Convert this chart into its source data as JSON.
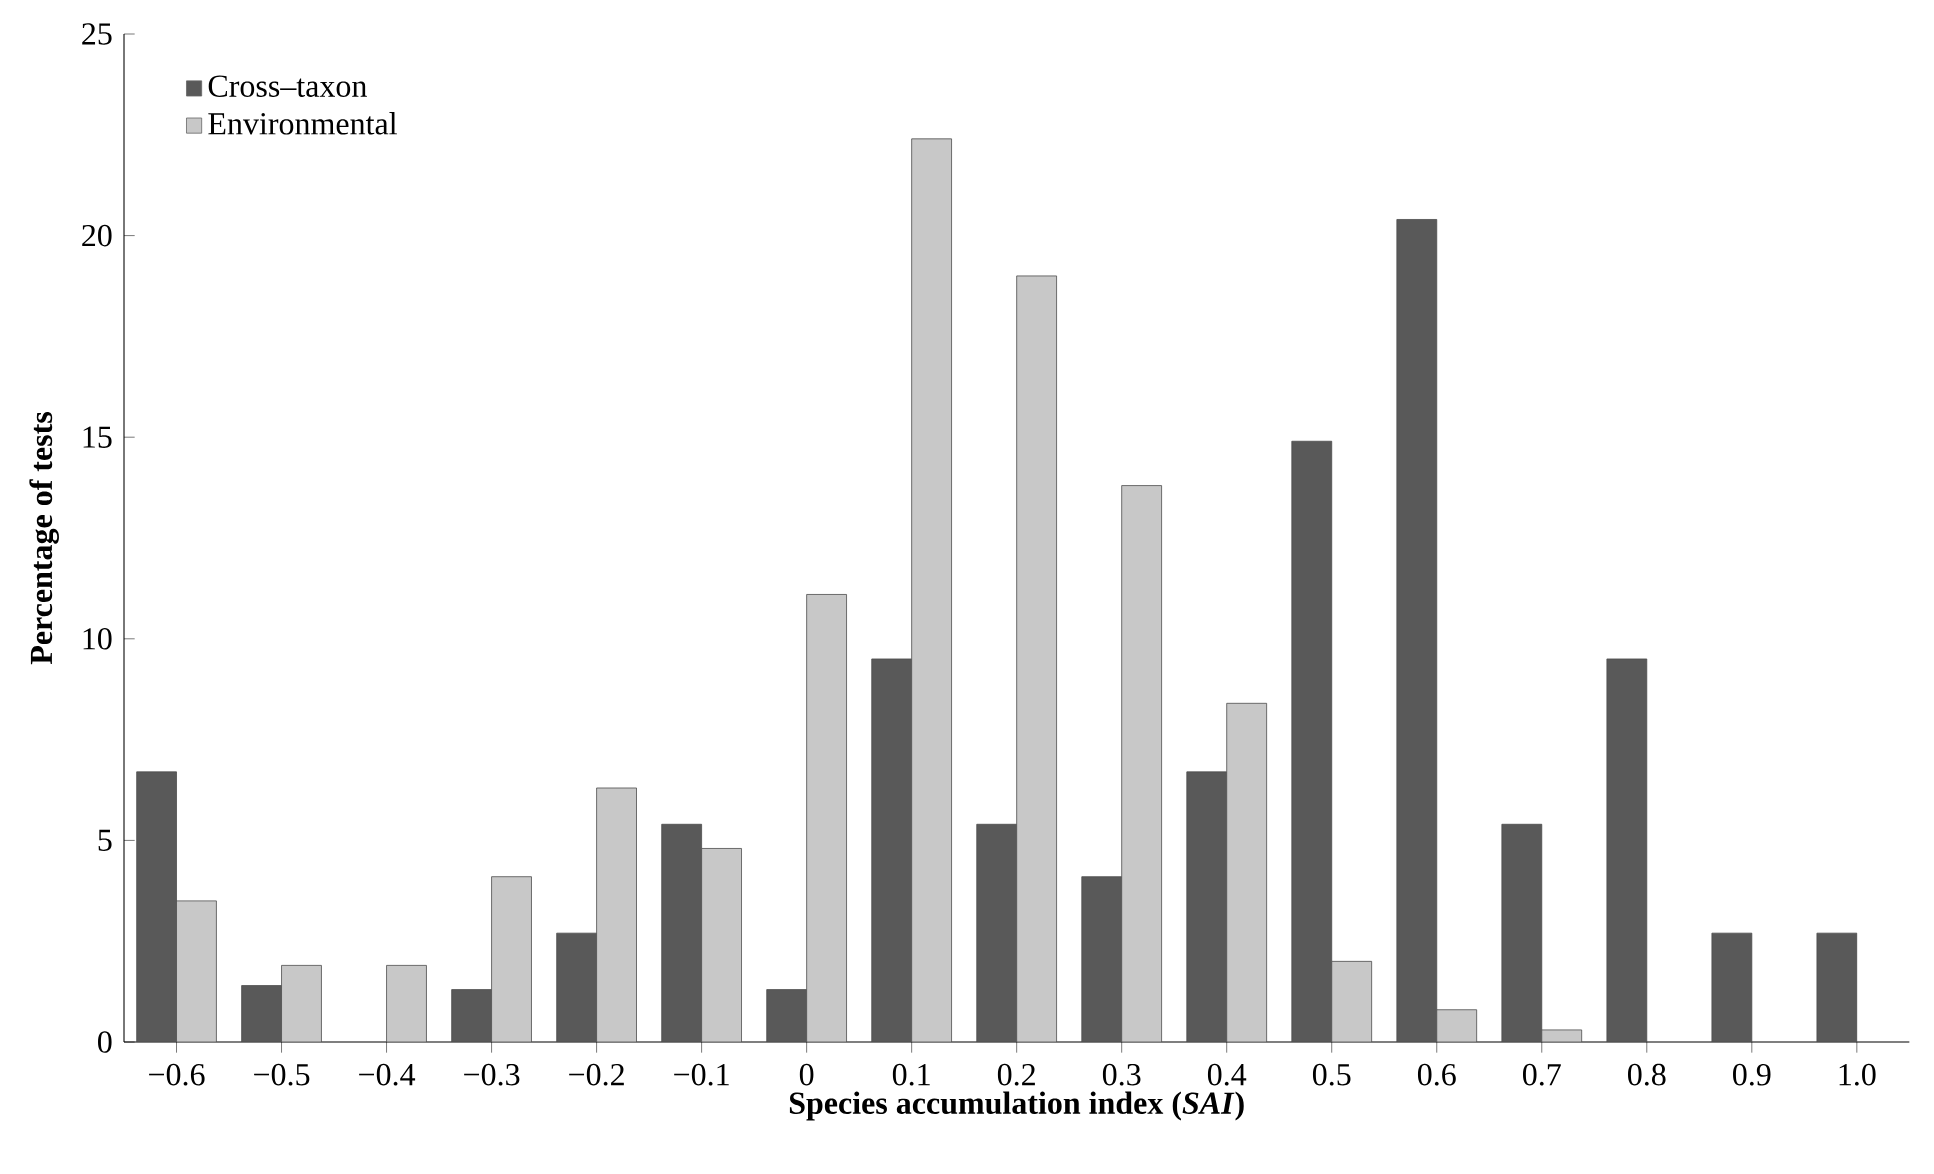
{
  "chart_data": {
    "type": "bar",
    "xlabel": "Species accumulation index (*SAI*)",
    "ylabel": "Percentage of tests",
    "categories": [
      "−0.6",
      "−0.5",
      "−0.4",
      "−0.3",
      "−0.2",
      "−0.1",
      "0",
      "0.1",
      "0.2",
      "0.3",
      "0.4",
      "0.5",
      "0.6",
      "0.7",
      "0.8",
      "0.9",
      "1.0"
    ],
    "series": [
      {
        "name": "Cross–taxon",
        "color": "#595959",
        "values": [
          6.7,
          1.4,
          null,
          1.3,
          2.7,
          5.4,
          1.3,
          9.5,
          5.4,
          4.1,
          6.7,
          14.9,
          20.4,
          5.4,
          9.5,
          2.7,
          2.7
        ]
      },
      {
        "name": "Environmental",
        "color": "#c8c8c8",
        "values": [
          3.5,
          1.9,
          1.9,
          4.1,
          6.3,
          4.8,
          11.1,
          22.4,
          19.0,
          13.8,
          8.4,
          2.0,
          0.8,
          0.3,
          null,
          null,
          null
        ]
      }
    ],
    "ylim": [
      0,
      25
    ],
    "yticks": [
      0,
      5,
      10,
      15,
      20,
      25
    ],
    "grid": false,
    "legend": "top left"
  }
}
